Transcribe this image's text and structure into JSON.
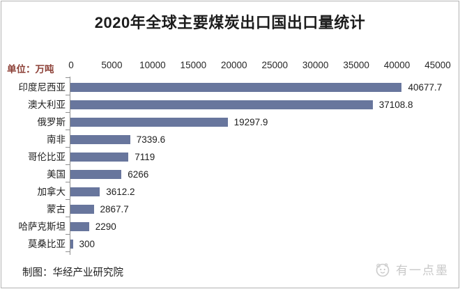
{
  "header": {
    "title": "2020年全球主要煤炭出口国出口量统计",
    "unit_label": "单位：万吨"
  },
  "footer": {
    "credit": "制图：华经产业研究院",
    "watermark_text": "有一点墨",
    "watermark_icon": "ink-mascot-face-icon"
  },
  "chart_data": {
    "type": "bar",
    "orientation": "horizontal",
    "title": "2020年全球主要煤炭出口国出口量统计",
    "unit": "万吨",
    "categories": [
      "印度尼西亚",
      "澳大利亚",
      "俄罗斯",
      "南非",
      "哥伦比亚",
      "美国",
      "加拿大",
      "蒙古",
      "哈萨克斯坦",
      "莫桑比亚"
    ],
    "values": [
      40677.7,
      37108.8,
      19297.9,
      7339.6,
      7119,
      6266,
      3612.2,
      2867.7,
      2290,
      300
    ],
    "value_labels": [
      "40677.7",
      "37108.8",
      "19297.9",
      "7339.6",
      "7119",
      "6266",
      "3612.2",
      "2867.7",
      "2290",
      "300"
    ],
    "x_ticks": [
      0,
      5000,
      10000,
      15000,
      20000,
      25000,
      30000,
      35000,
      40000,
      45000
    ],
    "xlim": [
      0,
      45000
    ],
    "xlabel": "",
    "ylabel": "",
    "grid": false,
    "legend": false,
    "bar_color": "#68769d",
    "axis_color": "#8f8f8f",
    "label_color": "#1e1e1e",
    "unit_label_color": "#8d4138"
  }
}
